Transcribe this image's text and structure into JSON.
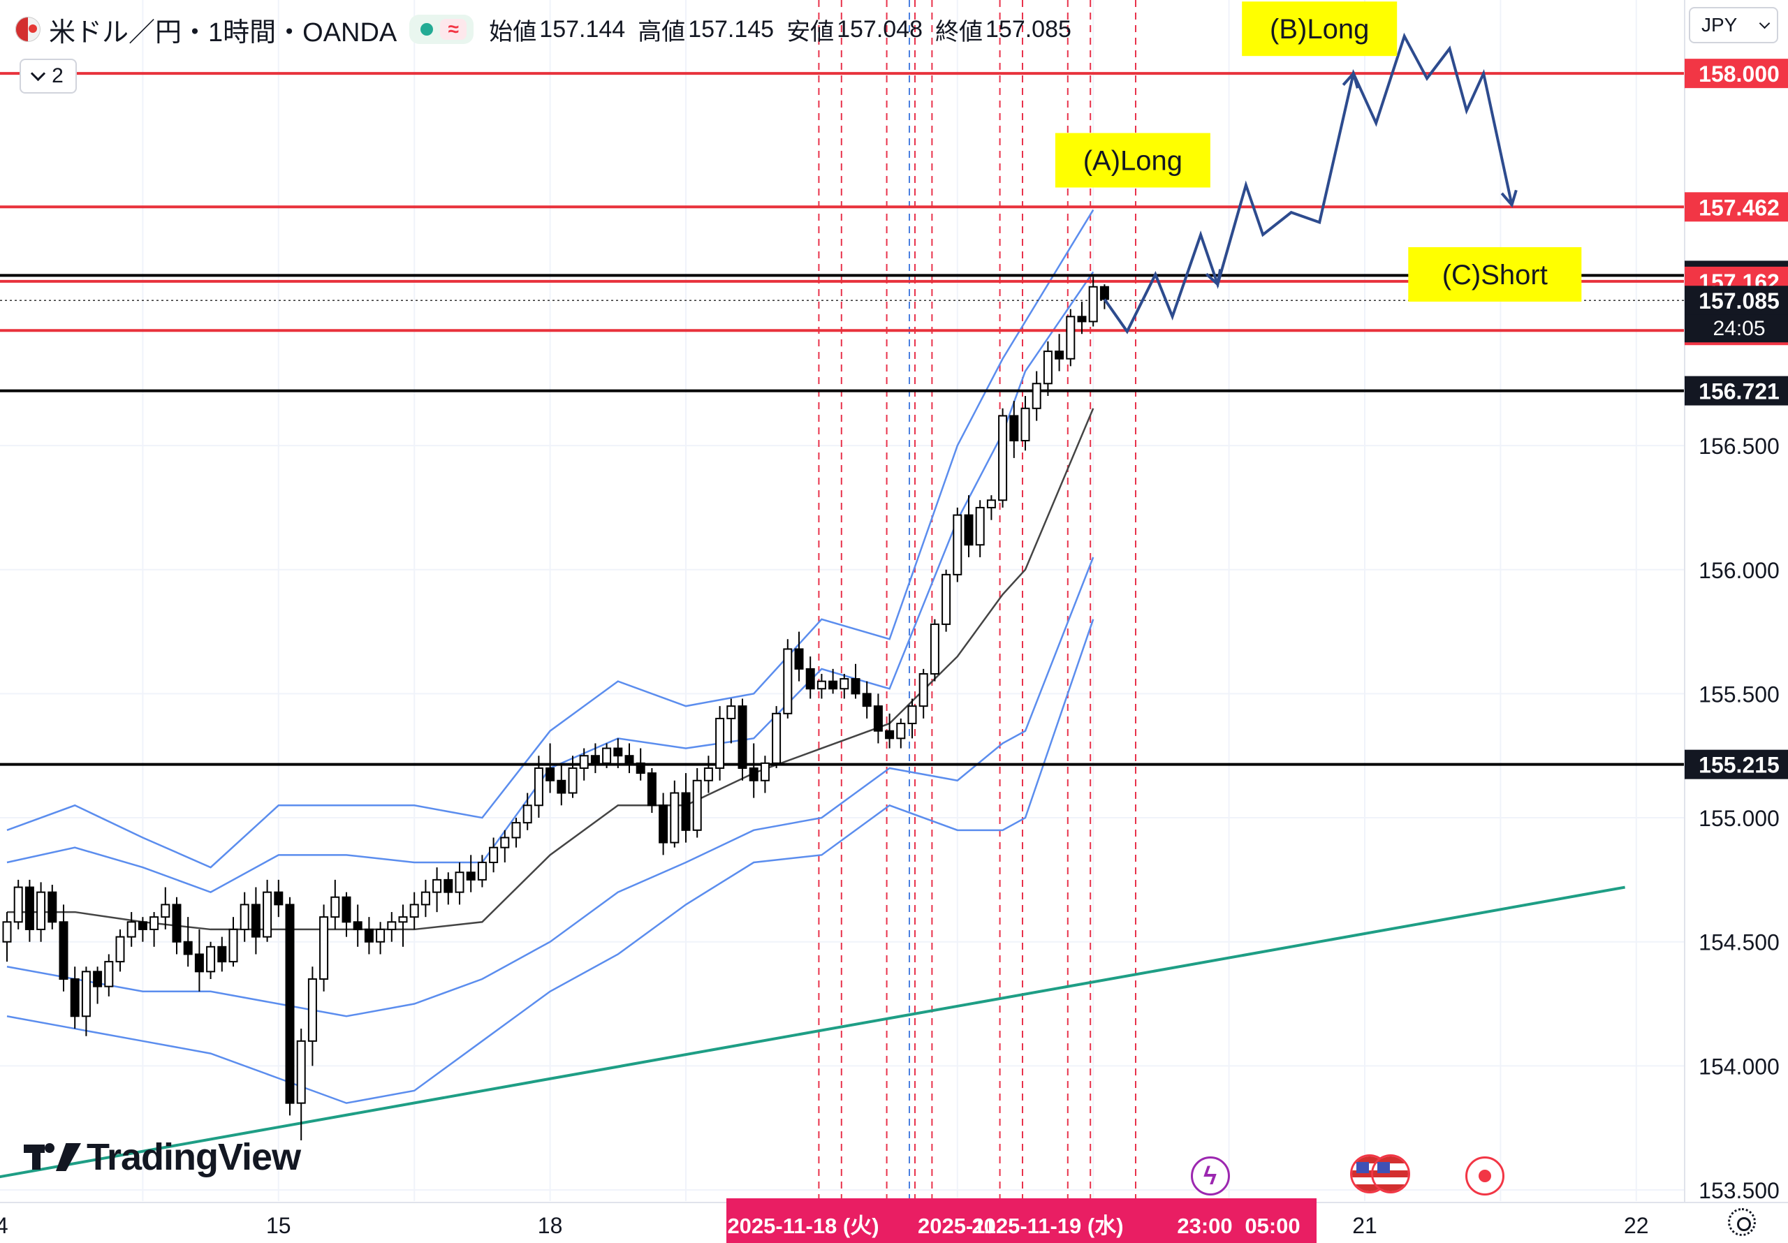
{
  "header": {
    "symbol": "米ドル／円・1時間・OANDA",
    "ohlc": [
      {
        "label": "始値",
        "value": "157.144"
      },
      {
        "label": "高値",
        "value": "157.145"
      },
      {
        "label": "安値",
        "value": "157.048"
      },
      {
        "label": "終値",
        "value": "157.085"
      }
    ],
    "indicator_toggle": "2",
    "currency": "JPY",
    "icons": [
      "flag-icon",
      "live-dot",
      "wave-icon",
      "chevron-down-icon"
    ]
  },
  "branding": {
    "logo_text": "TradingView"
  },
  "events": [
    "flash-icon",
    "us-flag-icon",
    "us-flag-icon",
    "record-icon"
  ],
  "colors": {
    "up": "#ffffff",
    "down": "#000000",
    "bollinger": "#5b8dee",
    "sma": "#444444",
    "resistance": "#e8323c",
    "support": "#000000",
    "trendline": "#1e9e85",
    "scenario_arrow": "#2d4b8e",
    "annotation_bg": "#ffff00",
    "session": "#e8324b",
    "session_alt": "#4a7fe0"
  },
  "chart_data": {
    "type": "candlestick",
    "title": "",
    "xlabel": "",
    "ylabel": "",
    "ylim": [
      153.47,
      158.35
    ],
    "y_ticks": [
      153.5,
      154.0,
      154.5,
      155.0,
      155.5,
      156.0,
      156.5
    ],
    "y_tick_labels": [
      "153.500",
      "154.000",
      "154.500",
      "155.000",
      "155.500",
      "156.000",
      "156.500"
    ],
    "x_ticks": [
      {
        "label": "14",
        "bar": -1
      },
      {
        "label": "15",
        "bar": 24
      },
      {
        "label": "18",
        "bar": 48
      },
      {
        "label": "21",
        "bar": 120
      },
      {
        "label": "22",
        "bar": 144
      }
    ],
    "crosshair_labels": [
      "2025-11-18 (火)",
      "2025-11",
      "2025-11-19 (水)",
      "23:00",
      "05:00"
    ],
    "candles": [
      [
        154.5,
        154.62,
        154.42,
        154.58
      ],
      [
        154.58,
        154.75,
        154.55,
        154.72
      ],
      [
        154.72,
        154.75,
        154.5,
        154.55
      ],
      [
        154.55,
        154.74,
        154.5,
        154.7
      ],
      [
        154.7,
        154.73,
        154.55,
        154.58
      ],
      [
        154.58,
        154.65,
        154.3,
        154.35
      ],
      [
        154.35,
        154.4,
        154.15,
        154.2
      ],
      [
        154.2,
        154.4,
        154.12,
        154.38
      ],
      [
        154.38,
        154.4,
        154.25,
        154.32
      ],
      [
        154.32,
        154.45,
        154.28,
        154.42
      ],
      [
        154.42,
        154.55,
        154.38,
        154.52
      ],
      [
        154.52,
        154.62,
        154.48,
        154.58
      ],
      [
        154.58,
        154.6,
        154.5,
        154.55
      ],
      [
        154.55,
        154.62,
        154.48,
        154.6
      ],
      [
        154.6,
        154.72,
        154.55,
        154.65
      ],
      [
        154.65,
        154.68,
        154.45,
        154.5
      ],
      [
        154.5,
        154.6,
        154.4,
        154.45
      ],
      [
        154.45,
        154.55,
        154.3,
        154.38
      ],
      [
        154.38,
        154.5,
        154.35,
        154.48
      ],
      [
        154.48,
        154.52,
        154.38,
        154.42
      ],
      [
        154.42,
        154.6,
        154.4,
        154.55
      ],
      [
        154.55,
        154.7,
        154.5,
        154.65
      ],
      [
        154.65,
        154.72,
        154.45,
        154.52
      ],
      [
        154.52,
        154.75,
        154.5,
        154.7
      ],
      [
        154.7,
        154.75,
        154.6,
        154.65
      ],
      [
        154.65,
        154.68,
        153.8,
        153.85
      ],
      [
        153.85,
        154.15,
        153.7,
        154.1
      ],
      [
        154.1,
        154.4,
        154.0,
        154.35
      ],
      [
        154.35,
        154.65,
        154.3,
        154.6
      ],
      [
        154.6,
        154.75,
        154.55,
        154.68
      ],
      [
        154.68,
        154.7,
        154.52,
        154.58
      ],
      [
        154.58,
        154.65,
        154.48,
        154.55
      ],
      [
        154.55,
        154.6,
        154.45,
        154.5
      ],
      [
        154.5,
        154.58,
        154.45,
        154.55
      ],
      [
        154.55,
        154.62,
        154.5,
        154.58
      ],
      [
        154.58,
        154.65,
        154.48,
        154.6
      ],
      [
        154.6,
        154.7,
        154.55,
        154.65
      ],
      [
        154.65,
        154.75,
        154.6,
        154.7
      ],
      [
        154.7,
        154.8,
        154.62,
        154.75
      ],
      [
        154.75,
        154.78,
        154.65,
        154.7
      ],
      [
        154.7,
        154.82,
        154.65,
        154.78
      ],
      [
        154.78,
        154.85,
        154.7,
        154.75
      ],
      [
        154.75,
        154.85,
        154.72,
        154.82
      ],
      [
        154.82,
        154.92,
        154.78,
        154.88
      ],
      [
        154.88,
        154.95,
        154.82,
        154.92
      ],
      [
        154.92,
        155.0,
        154.88,
        154.98
      ],
      [
        154.98,
        155.1,
        154.95,
        155.05
      ],
      [
        155.05,
        155.25,
        155.0,
        155.2
      ],
      [
        155.2,
        155.3,
        155.1,
        155.15
      ],
      [
        155.15,
        155.22,
        155.05,
        155.1
      ],
      [
        155.1,
        155.25,
        155.08,
        155.2
      ],
      [
        155.2,
        155.28,
        155.15,
        155.25
      ],
      [
        155.25,
        155.3,
        155.18,
        155.22
      ],
      [
        155.22,
        155.3,
        155.2,
        155.28
      ],
      [
        155.28,
        155.32,
        155.2,
        155.25
      ],
      [
        155.25,
        155.3,
        155.18,
        155.22
      ],
      [
        155.22,
        155.28,
        155.15,
        155.18
      ],
      [
        155.18,
        155.2,
        155.02,
        155.05
      ],
      [
        155.05,
        155.1,
        154.85,
        154.9
      ],
      [
        154.9,
        155.15,
        154.88,
        155.1
      ],
      [
        155.1,
        155.18,
        154.9,
        154.95
      ],
      [
        154.95,
        155.2,
        154.92,
        155.15
      ],
      [
        155.15,
        155.25,
        155.1,
        155.2
      ],
      [
        155.2,
        155.45,
        155.15,
        155.4
      ],
      [
        155.4,
        155.48,
        155.3,
        155.45
      ],
      [
        155.45,
        155.48,
        155.15,
        155.2
      ],
      [
        155.2,
        155.3,
        155.08,
        155.15
      ],
      [
        155.15,
        155.25,
        155.1,
        155.22
      ],
      [
        155.22,
        155.45,
        155.2,
        155.42
      ],
      [
        155.42,
        155.72,
        155.4,
        155.68
      ],
      [
        155.68,
        155.75,
        155.55,
        155.6
      ],
      [
        155.6,
        155.65,
        155.48,
        155.52
      ],
      [
        155.52,
        155.58,
        155.48,
        155.55
      ],
      [
        155.55,
        155.6,
        155.5,
        155.52
      ],
      [
        155.52,
        155.58,
        155.48,
        155.56
      ],
      [
        155.56,
        155.62,
        155.48,
        155.5
      ],
      [
        155.5,
        155.55,
        155.4,
        155.45
      ],
      [
        155.45,
        155.5,
        155.3,
        155.35
      ],
      [
        155.35,
        155.42,
        155.28,
        155.32
      ],
      [
        155.32,
        155.4,
        155.28,
        155.38
      ],
      [
        155.38,
        155.48,
        155.32,
        155.45
      ],
      [
        155.45,
        155.6,
        155.4,
        155.58
      ],
      [
        155.58,
        155.8,
        155.55,
        155.78
      ],
      [
        155.78,
        156.0,
        155.75,
        155.98
      ],
      [
        155.98,
        156.25,
        155.95,
        156.22
      ],
      [
        156.22,
        156.3,
        156.05,
        156.1
      ],
      [
        156.1,
        156.28,
        156.05,
        156.25
      ],
      [
        156.25,
        156.3,
        156.2,
        156.28
      ],
      [
        156.28,
        156.65,
        156.25,
        156.62
      ],
      [
        156.62,
        156.68,
        156.45,
        156.52
      ],
      [
        156.52,
        156.7,
        156.48,
        156.65
      ],
      [
        156.65,
        156.8,
        156.6,
        156.75
      ],
      [
        156.75,
        156.92,
        156.7,
        156.88
      ],
      [
        156.88,
        156.95,
        156.8,
        156.85
      ],
      [
        156.85,
        157.05,
        156.82,
        157.02
      ],
      [
        157.02,
        157.08,
        156.95,
        157.0
      ],
      [
        157.0,
        157.18,
        156.98,
        157.14
      ],
      [
        157.14,
        157.15,
        157.05,
        157.09
      ]
    ],
    "bollinger": {
      "bars": [
        0,
        6,
        12,
        18,
        24,
        30,
        36,
        42,
        48,
        54,
        60,
        66,
        72,
        78,
        84,
        88,
        90,
        96
      ],
      "upper2": [
        154.95,
        155.05,
        154.92,
        154.8,
        155.05,
        155.05,
        155.05,
        155.0,
        155.35,
        155.55,
        155.45,
        155.5,
        155.8,
        155.72,
        156.5,
        156.85,
        157.0,
        157.45
      ],
      "upper1": [
        154.82,
        154.88,
        154.8,
        154.7,
        154.85,
        154.85,
        154.82,
        154.82,
        155.2,
        155.32,
        155.28,
        155.32,
        155.6,
        155.52,
        156.2,
        156.55,
        156.8,
        157.2
      ],
      "mid": [
        154.62,
        154.62,
        154.58,
        154.55,
        154.55,
        154.55,
        154.55,
        154.58,
        154.85,
        155.05,
        155.05,
        155.18,
        155.28,
        155.38,
        155.65,
        155.9,
        156.0,
        156.65
      ],
      "lower1": [
        154.4,
        154.35,
        154.3,
        154.3,
        154.25,
        154.2,
        154.25,
        154.35,
        154.5,
        154.7,
        154.82,
        154.95,
        155.0,
        155.2,
        155.15,
        155.3,
        155.35,
        156.05
      ],
      "lower2": [
        154.2,
        154.15,
        154.1,
        154.05,
        153.95,
        153.85,
        153.9,
        154.1,
        154.3,
        154.45,
        154.65,
        154.82,
        154.85,
        155.05,
        154.95,
        154.95,
        155.0,
        155.8
      ]
    },
    "resistance_lines": [
      158.0,
      157.462,
      157.162,
      156.964
    ],
    "support_lines": [
      157.186,
      156.721,
      155.215
    ],
    "current_price": 157.085,
    "countdown": "24:05",
    "trendline": {
      "from": [
        -1,
        153.55
      ],
      "to": [
        143,
        154.72
      ]
    },
    "price_labels": [
      {
        "text": "158.000",
        "y": 158.0,
        "style": "red"
      },
      {
        "text": "157.462",
        "y": 157.462,
        "style": "red"
      },
      {
        "text": "157.186",
        "y": 157.186,
        "style": "black"
      },
      {
        "text": "157.162",
        "y": 157.162,
        "style": "red"
      },
      {
        "text": "157.085",
        "y": 157.085,
        "style": "black"
      },
      {
        "text": "156.964",
        "y": 156.964,
        "style": "red"
      },
      {
        "text": "156.721",
        "y": 156.721,
        "style": "black"
      },
      {
        "text": "155.215",
        "y": 155.215,
        "style": "black"
      }
    ],
    "session_lines": [
      72,
      74,
      78,
      80,
      82,
      88,
      90,
      94,
      96,
      100
    ],
    "session_line_alt": [
      80
    ],
    "scenario_path": [
      [
        97,
        157.09
      ],
      [
        99,
        156.96
      ],
      [
        101.5,
        157.19
      ],
      [
        103,
        157.02
      ],
      [
        105.5,
        157.35
      ],
      [
        107,
        157.15
      ],
      [
        109.5,
        157.55
      ],
      [
        111,
        157.35
      ],
      [
        113.5,
        157.44
      ],
      [
        116,
        157.4
      ],
      [
        119,
        158.0
      ],
      [
        121,
        157.8
      ],
      [
        123.5,
        158.15
      ],
      [
        125.5,
        157.98
      ],
      [
        127.5,
        158.1
      ],
      [
        129,
        157.85
      ],
      [
        130.5,
        158.0
      ],
      [
        133,
        157.47
      ]
    ],
    "annotations": [
      {
        "text": "(A)Long",
        "bar": 99.5,
        "y": 157.65
      },
      {
        "text": "(B)Long",
        "bar": 116,
        "y": 158.18
      },
      {
        "text": "(C)Short",
        "bar": 131.5,
        "y": 157.19
      }
    ]
  }
}
